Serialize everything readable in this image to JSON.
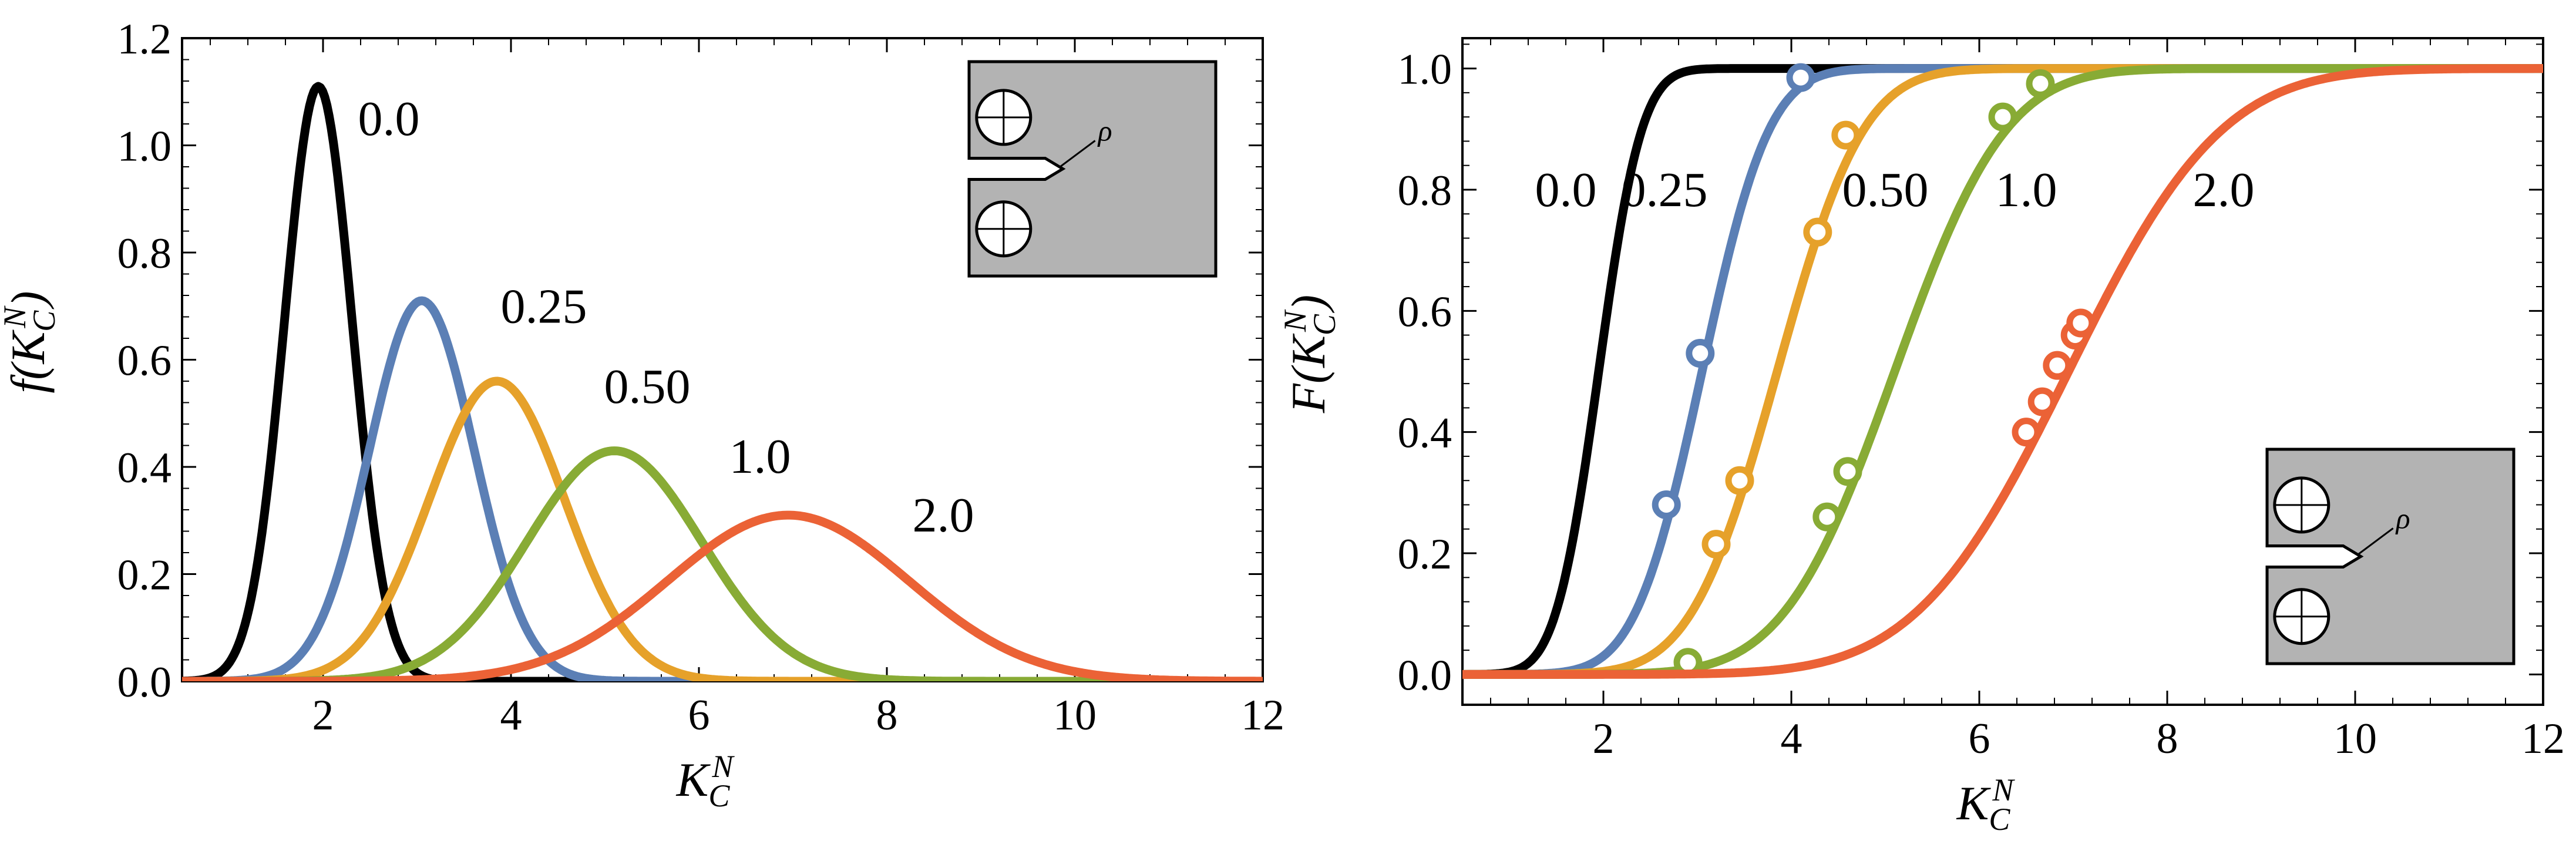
{
  "chart_data": [
    {
      "type": "line",
      "id": "pdf",
      "xlabel": "K_C^N",
      "ylabel": "f(K_C^N)",
      "xlim": [
        0.5,
        12
      ],
      "ylim": [
        0,
        1.2
      ],
      "xticks": [
        2,
        4,
        6,
        8,
        10,
        12
      ],
      "yticks": [
        0.0,
        0.2,
        0.4,
        0.6,
        0.8,
        1.0,
        1.2
      ],
      "ytick_labels": [
        "0.0",
        "0.2",
        "0.4",
        "0.6",
        "0.8",
        "1.0",
        "1.2"
      ],
      "inset": {
        "rho": "ρ",
        "placement": "top-right"
      },
      "series": [
        {
          "name": "0.0",
          "label": "0.0",
          "color": "#000000",
          "mean": 1.95,
          "sd": 0.36,
          "peak": 1.11,
          "label_at": [
            2.7,
            1.05
          ]
        },
        {
          "name": "0.25",
          "label": "0.25",
          "color": "#5b7fb5",
          "mean": 3.05,
          "sd": 0.56,
          "peak": 0.71,
          "label_at": [
            4.35,
            0.7
          ]
        },
        {
          "name": "0.50",
          "label": "0.50",
          "color": "#e6a12a",
          "mean": 3.85,
          "sd": 0.72,
          "peak": 0.56,
          "label_at": [
            5.45,
            0.55
          ]
        },
        {
          "name": "1.0",
          "label": "1.0",
          "color": "#88ab35",
          "mean": 5.1,
          "sd": 0.93,
          "peak": 0.43,
          "label_at": [
            6.65,
            0.42
          ]
        },
        {
          "name": "2.0",
          "label": "2.0",
          "color": "#eb6236",
          "mean": 6.95,
          "sd": 1.28,
          "peak": 0.31,
          "label_at": [
            8.6,
            0.31
          ]
        }
      ]
    },
    {
      "type": "line",
      "id": "cdf",
      "xlabel": "K_C^N",
      "ylabel": "F(K_C^N)",
      "xlim": [
        0.5,
        12
      ],
      "ylim": [
        -0.05,
        1.05
      ],
      "xticks": [
        2,
        4,
        6,
        8,
        10,
        12
      ],
      "yticks": [
        0.0,
        0.2,
        0.4,
        0.6,
        0.8,
        1.0
      ],
      "ytick_labels": [
        "0.0",
        "0.2",
        "0.4",
        "0.6",
        "0.8",
        "1.0"
      ],
      "inset": {
        "rho": "ρ",
        "placement": "bottom-right"
      },
      "series": [
        {
          "name": "0.0",
          "label": "0.0",
          "color": "#000000",
          "mean": 1.95,
          "sd": 0.36,
          "label_at": [
            1.6,
            0.8
          ],
          "points": []
        },
        {
          "name": "0.25",
          "label": "0.25",
          "color": "#5b7fb5",
          "mean": 3.05,
          "sd": 0.56,
          "label_at": [
            2.65,
            0.8
          ],
          "points": [
            [
              2.67,
              0.28
            ],
            [
              3.03,
              0.53
            ],
            [
              4.1,
              0.985
            ]
          ]
        },
        {
          "name": "0.50",
          "label": "0.50",
          "color": "#e6a12a",
          "mean": 3.85,
          "sd": 0.72,
          "label_at": [
            5.0,
            0.8
          ],
          "points": [
            [
              3.2,
              0.215
            ],
            [
              3.45,
              0.32
            ],
            [
              4.28,
              0.73
            ],
            [
              4.58,
              0.89
            ]
          ]
        },
        {
          "name": "1.0",
          "label": "1.0",
          "color": "#88ab35",
          "mean": 5.1,
          "sd": 0.93,
          "label_at": [
            6.5,
            0.8
          ],
          "points": [
            [
              2.9,
              0.02
            ],
            [
              4.38,
              0.26
            ],
            [
              4.6,
              0.335
            ],
            [
              6.25,
              0.92
            ],
            [
              6.65,
              0.975
            ]
          ]
        },
        {
          "name": "2.0",
          "label": "2.0",
          "color": "#eb6236",
          "mean": 6.95,
          "sd": 1.28,
          "label_at": [
            8.6,
            0.8
          ],
          "points": [
            [
              6.5,
              0.4
            ],
            [
              6.67,
              0.45
            ],
            [
              6.83,
              0.51
            ],
            [
              7.02,
              0.56
            ],
            [
              7.08,
              0.58
            ]
          ]
        }
      ]
    }
  ]
}
